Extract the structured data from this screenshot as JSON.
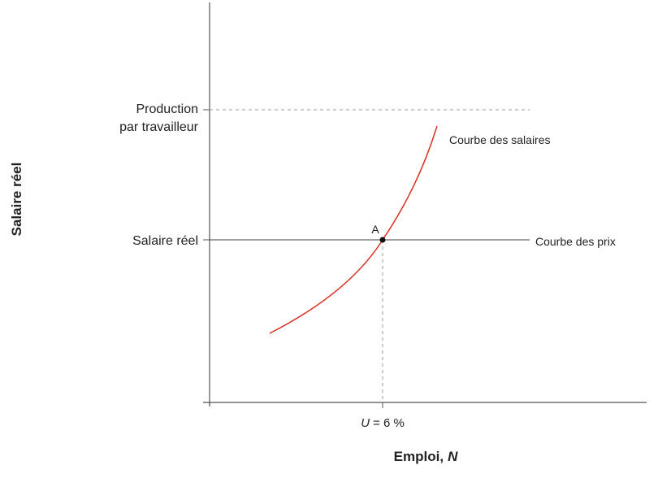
{
  "y_axis": {
    "label": "Salaire réel",
    "ticks": [
      {
        "lines": [
          "Production",
          "par travailleur"
        ]
      },
      {
        "lines": [
          "Salaire réel"
        ]
      }
    ]
  },
  "x_axis": {
    "label": {
      "text": "Emploi,",
      "var": "N"
    },
    "tick": {
      "var": "U",
      "text": "= 6 %"
    }
  },
  "curves": {
    "wage": "Courbe des salaires",
    "price": "Courbe des prix"
  },
  "point": {
    "label": "A"
  }
}
